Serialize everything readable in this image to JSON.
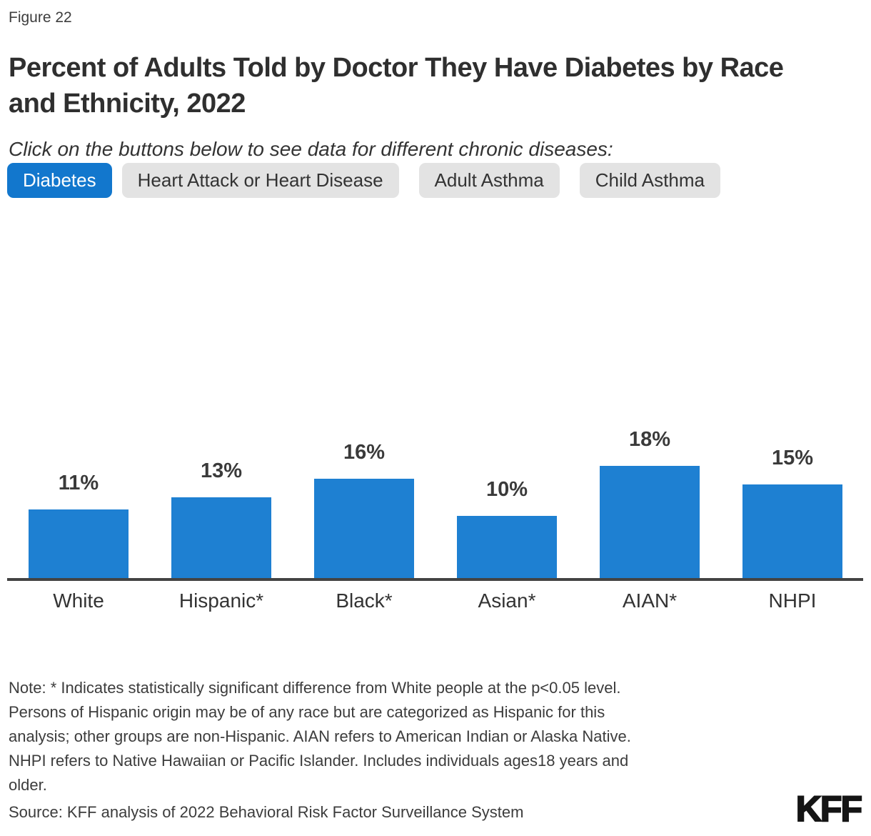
{
  "figure_label": "Figure 22",
  "title": "Percent of Adults Told by Doctor They Have Diabetes by Race\nand Ethnicity, 2022",
  "subtitle": "Click on the buttons below to see data for different chronic diseases:",
  "buttons": [
    {
      "id": "diabetes",
      "label": "Diabetes",
      "active": true
    },
    {
      "id": "heart-attack-or-heart-disease",
      "label": "Heart Attack or Heart Disease",
      "active": false
    },
    {
      "id": "adult-asthma",
      "label": "Adult Asthma",
      "active": false
    },
    {
      "id": "child-asthma",
      "label": "Child Asthma",
      "active": false
    }
  ],
  "chart_data": {
    "type": "bar",
    "title": "Percent of Adults Told by Doctor They Have Diabetes by Race and Ethnicity, 2022",
    "categories": [
      "White",
      "Hispanic*",
      "Black*",
      "Asian*",
      "AIAN*",
      "NHPI"
    ],
    "values": [
      11,
      13,
      16,
      10,
      18,
      15
    ],
    "value_labels": [
      "11%",
      "13%",
      "16%",
      "10%",
      "18%",
      "15%"
    ],
    "xlabel": "",
    "ylabel": "",
    "ylim": [
      0,
      20
    ],
    "grid": false,
    "legend": false,
    "bar_color": "#1e80d2",
    "axis_line_color": "#434343"
  },
  "note": "Note: * Indicates statistically significant difference from White people at the p<0.05 level.\nPersons of Hispanic origin may be of any race but are categorized as Hispanic for this\nanalysis; other groups are non-Hispanic. AIAN refers to American Indian or Alaska Native.\nNHPI refers to Native Hawaiian or Pacific Islander. Includes individuals ages18 years and\nolder.",
  "source": "Source: KFF analysis of 2022 Behavioral Risk Factor Surveillance System",
  "logo": "KFF",
  "colors": {
    "accent_blue": "#1277cd",
    "bar_blue": "#1e80d2",
    "button_gray": "#e3e3e3",
    "axis_color": "#434343",
    "text_dark": "#333333"
  }
}
